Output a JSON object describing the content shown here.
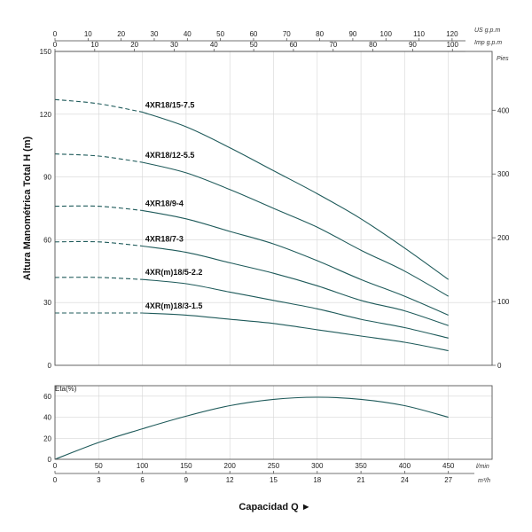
{
  "chart_data": [
    {
      "type": "line",
      "title": "",
      "xlabel": "",
      "ylabel": "Altura Manométrica Total H (m)",
      "ylim": [
        0,
        150
      ],
      "x_unit": "m³/h",
      "y_ticks": [
        "0",
        "30",
        "60",
        "90",
        "120",
        "150"
      ],
      "right_axis": {
        "label": "Pies",
        "ticks": [
          "0",
          "100",
          "200",
          "300",
          "400"
        ]
      },
      "top_axes": [
        {
          "label": "US g.p.m",
          "ticks": [
            "0",
            "10",
            "20",
            "30",
            "40",
            "50",
            "60",
            "70",
            "80",
            "90",
            "100",
            "110",
            "120"
          ]
        },
        {
          "label": "Imp g.p.m",
          "ticks": [
            "0",
            "10",
            "20",
            "30",
            "40",
            "50",
            "60",
            "70",
            "80",
            "90",
            "100"
          ]
        }
      ],
      "grid": true,
      "series": [
        {
          "name": "4XR18/15-7.5",
          "x": [
            0,
            3,
            6,
            9,
            12,
            15,
            18,
            21,
            24,
            27
          ],
          "y": [
            127,
            125,
            121,
            114,
            104,
            93,
            82,
            70,
            56,
            41
          ]
        },
        {
          "name": "4XR18/12-5.5",
          "x": [
            0,
            3,
            6,
            9,
            12,
            15,
            18,
            21,
            24,
            27
          ],
          "y": [
            101,
            100,
            97,
            92,
            84,
            75,
            66,
            55,
            45,
            33
          ]
        },
        {
          "name": "4XR18/9-4",
          "x": [
            0,
            3,
            6,
            9,
            12,
            15,
            18,
            21,
            24,
            27
          ],
          "y": [
            76,
            76,
            74,
            70,
            64,
            58,
            50,
            41,
            33,
            24
          ]
        },
        {
          "name": "4XR18/7-3",
          "x": [
            0,
            3,
            6,
            9,
            12,
            15,
            18,
            21,
            24,
            27
          ],
          "y": [
            59,
            59,
            57,
            54,
            49,
            44,
            38,
            31,
            26,
            19
          ]
        },
        {
          "name": "4XR(m)18/5-2.2",
          "x": [
            0,
            3,
            6,
            9,
            12,
            15,
            18,
            21,
            24,
            27
          ],
          "y": [
            42,
            42,
            41,
            39,
            35,
            31,
            27,
            22,
            18,
            13
          ]
        },
        {
          "name": "4XR(m)18/3-1.5",
          "x": [
            0,
            3,
            6,
            9,
            12,
            15,
            18,
            21,
            24,
            27
          ],
          "y": [
            25,
            25,
            25,
            24,
            22,
            20,
            17,
            14,
            11,
            7
          ]
        }
      ]
    },
    {
      "type": "line",
      "title": "",
      "xlabel": "Capacidad Q ►",
      "ylabel": "Eta(%)",
      "ylim": [
        0,
        70
      ],
      "y_ticks": [
        "0",
        "20",
        "40",
        "60"
      ],
      "x_axes": [
        {
          "label": "l/min",
          "ticks": [
            "0",
            "50",
            "100",
            "150",
            "200",
            "250",
            "300",
            "350",
            "400",
            "450"
          ]
        },
        {
          "label": "m³/h",
          "ticks": [
            "0",
            "3",
            "6",
            "9",
            "12",
            "15",
            "18",
            "21",
            "24",
            "27"
          ]
        }
      ],
      "grid": true,
      "series": [
        {
          "name": "",
          "x": [
            0,
            3,
            6,
            9,
            12,
            15,
            18,
            21,
            24,
            27
          ],
          "y": [
            0,
            16,
            29,
            41,
            51,
            57,
            59,
            57,
            51,
            40
          ]
        }
      ]
    }
  ]
}
